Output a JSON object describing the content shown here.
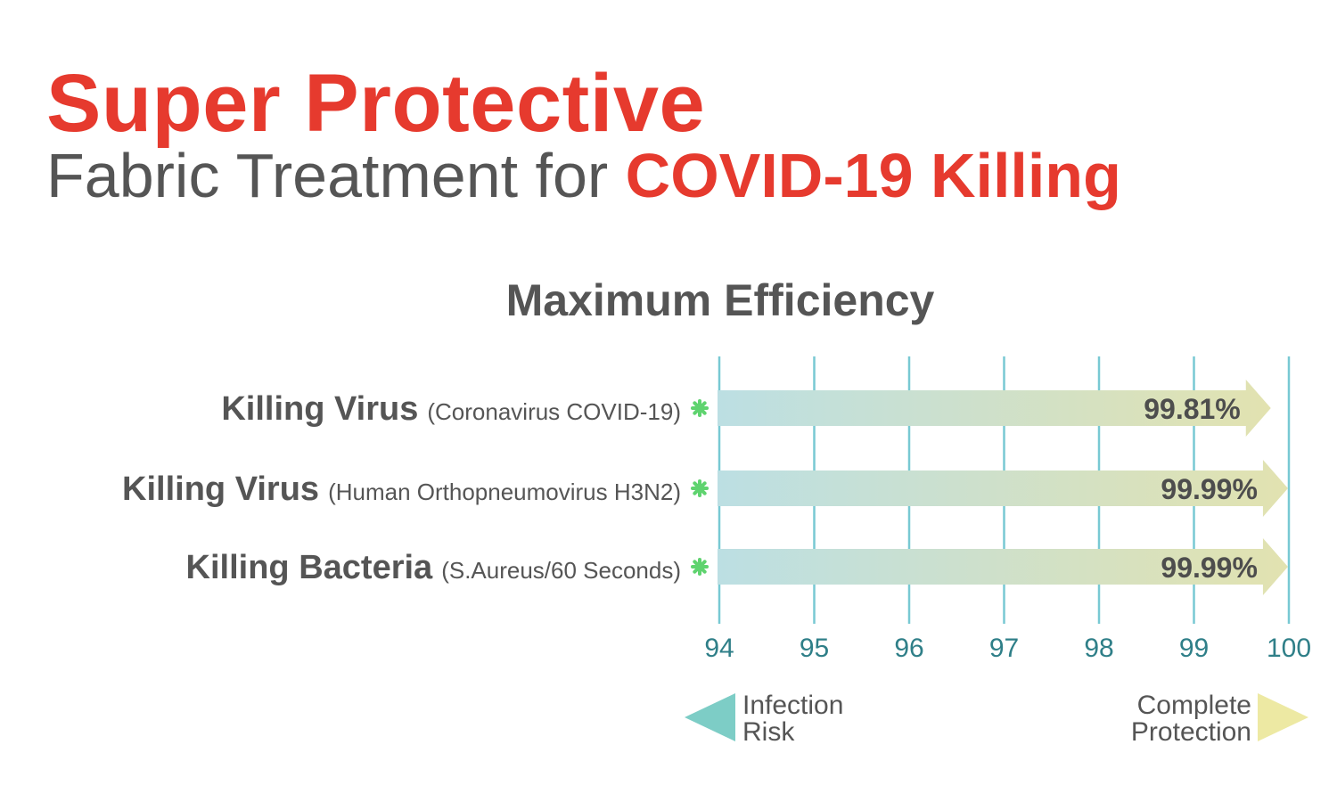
{
  "header": {
    "title_line1": "Super Protective",
    "title_line2_prefix": "Fabric Treatment for ",
    "title_line2_accent": "COVID-19 Killing"
  },
  "chart_data": {
    "type": "bar",
    "orientation": "horizontal",
    "title": "Maximum Efficiency",
    "categories": [
      {
        "main": "Killing Virus",
        "detail": "(Coronavirus COVID-19)"
      },
      {
        "main": "Killing Virus",
        "detail": "(Human Orthopneumovirus H3N2)"
      },
      {
        "main": "Killing Bacteria",
        "detail": "(S.Aureus/60 Seconds)"
      }
    ],
    "values": [
      99.81,
      99.99,
      99.99
    ],
    "value_labels": [
      "99.81%",
      "99.99%",
      "99.99%"
    ],
    "xlim": [
      94,
      100
    ],
    "xticks": [
      "94",
      "95",
      "96",
      "97",
      "98",
      "99",
      "100"
    ],
    "grid": true,
    "legend": {
      "left": [
        "Infection",
        "Risk"
      ],
      "right": [
        "Complete",
        "Protection"
      ]
    },
    "colors": {
      "bar_start": "#bcdfe3",
      "bar_end": "#e2e2b0",
      "grid": "#78c9d3",
      "tick_text": "#2f7f88",
      "marker": "#5fd36f",
      "left_arrow": "#7dcdc6",
      "right_arrow": "#ede9a3"
    }
  }
}
